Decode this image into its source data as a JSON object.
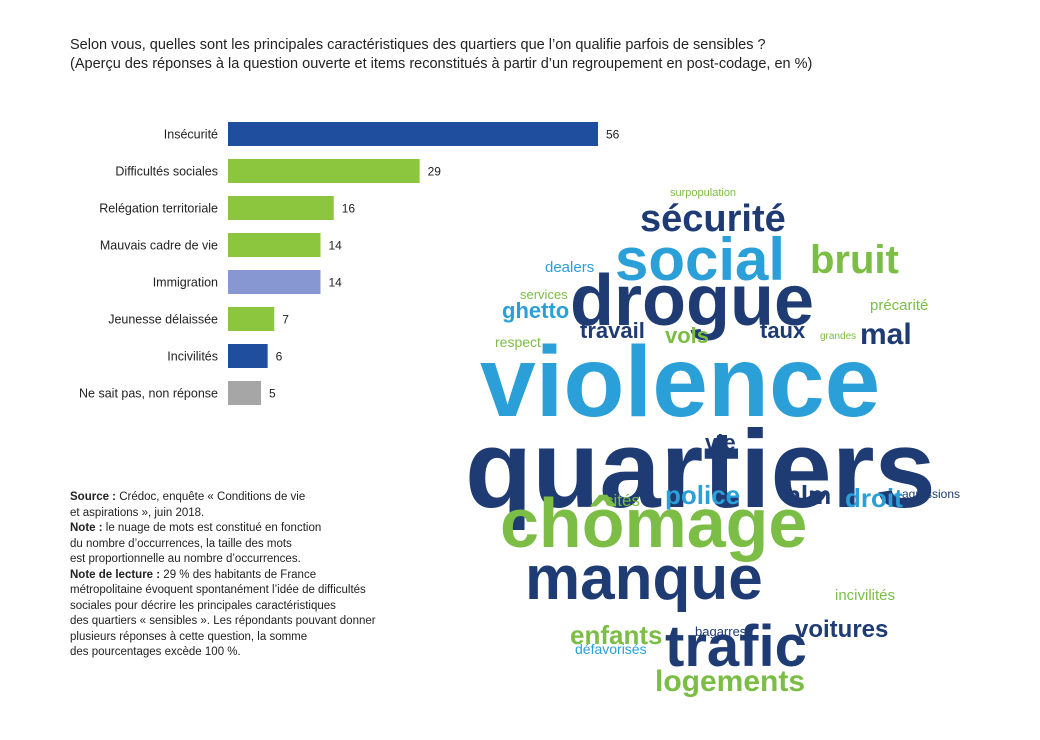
{
  "title_line1": "Selon vous, quelles sont les principales caractéristiques des quartiers que l’on qualifie parfois de sensibles ?",
  "title_line2": "(Aperçu des réponses à la question ouverte et items reconstitués à partir d’un regroupement en post-codage, en %)",
  "chart_data": {
    "type": "bar",
    "orientation": "horizontal",
    "categories": [
      "Insécurité",
      "Difficultés sociales",
      "Relégation territoriale",
      "Mauvais cadre de vie",
      "Immigration",
      "Jeunesse délaissée",
      "Incivilités",
      "Ne sait pas, non réponse"
    ],
    "values": [
      56,
      29,
      16,
      14,
      14,
      7,
      6,
      5
    ],
    "colors": [
      "#1f4e9e",
      "#8cc63f",
      "#8cc63f",
      "#8cc63f",
      "#8797d2",
      "#8cc63f",
      "#1f4e9e",
      "#a6a6a6"
    ],
    "xlim": [
      0,
      56
    ],
    "grid": false
  },
  "notes": {
    "source_label": "Source :",
    "source_text": " Crédoc, enquête « Conditions de vie",
    "source_text2": "et aspirations », juin 2018.",
    "note_label": "Note :",
    "note_text": " le nuage de mots est constitué en fonction",
    "note_text2": "du nombre d’occurrences, la taille des mots",
    "note_text3": "est proportionnelle au nombre d’occurrences.",
    "lecture_label": "Note de lecture :",
    "lecture_text": " 29 % des habitants de France",
    "lecture_text2": "métropolitaine évoquent spontanément l’idée de difficultés",
    "lecture_text3": "sociales pour décrire les principales caractéristiques",
    "lecture_text4": "des quartiers « sensibles ». Les répondants pouvant donner",
    "lecture_text5": "plusieurs réponses à cette question, la somme",
    "lecture_text6": "des pourcentages excède 100 %."
  },
  "word_cloud": {
    "colors": {
      "navy": "#1f3b73",
      "blue": "#2a9fd8",
      "green": "#7bbd45",
      "grey": "#aab3bd"
    },
    "words": [
      {
        "text": "surpopulation",
        "color": "green"
      },
      {
        "text": "sécurité",
        "color": "navy"
      },
      {
        "text": "social",
        "color": "blue"
      },
      {
        "text": "bruit",
        "color": "green"
      },
      {
        "text": "dealers",
        "color": "blue"
      },
      {
        "text": "drogue",
        "color": "navy"
      },
      {
        "text": "services",
        "color": "green"
      },
      {
        "text": "précarité",
        "color": "green"
      },
      {
        "text": "ghetto",
        "color": "blue"
      },
      {
        "text": "travail",
        "color": "navy"
      },
      {
        "text": "vols",
        "color": "green"
      },
      {
        "text": "taux",
        "color": "navy"
      },
      {
        "text": "mal",
        "color": "navy"
      },
      {
        "text": "respect",
        "color": "green"
      },
      {
        "text": "grandes",
        "color": "green"
      },
      {
        "text": "violence",
        "color": "blue"
      },
      {
        "text": "quartiers",
        "color": "navy"
      },
      {
        "text": "vie",
        "color": "navy"
      },
      {
        "text": "police",
        "color": "blue"
      },
      {
        "text": "hlm",
        "color": "navy"
      },
      {
        "text": "droit",
        "color": "blue"
      },
      {
        "text": "cités",
        "color": "green"
      },
      {
        "text": "agressions",
        "color": "navy"
      },
      {
        "text": "chômage",
        "color": "green"
      },
      {
        "text": "manque",
        "color": "navy"
      },
      {
        "text": "incivilités",
        "color": "green"
      },
      {
        "text": "enfants",
        "color": "green"
      },
      {
        "text": "bagarres",
        "color": "navy"
      },
      {
        "text": "voitures",
        "color": "navy"
      },
      {
        "text": "trafic",
        "color": "navy"
      },
      {
        "text": "défavorisés",
        "color": "blue"
      },
      {
        "text": "logements",
        "color": "green"
      }
    ]
  }
}
